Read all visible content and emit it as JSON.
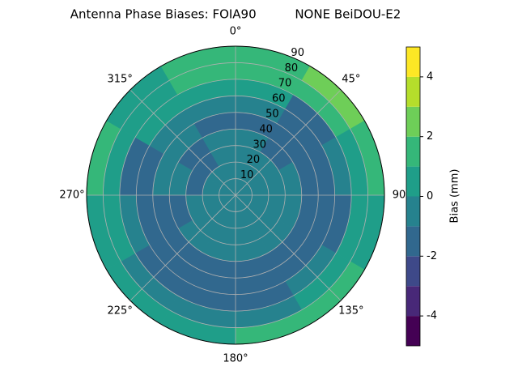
{
  "chart_data": {
    "type": "polar-contour",
    "title": "Antenna Phase Biases: FOIA90          NONE BeiDOU-E2",
    "r_edges": [
      0,
      10,
      20,
      30,
      40,
      50,
      60,
      70,
      80,
      90
    ],
    "theta_edges": [
      0,
      30,
      60,
      90,
      120,
      150,
      180,
      210,
      240,
      270,
      300,
      330,
      360
    ],
    "z": [
      [
        -0.5,
        -0.5,
        -0.5,
        -0.5,
        -0.5,
        -0.5,
        -0.5,
        -0.5,
        -0.5,
        -0.5,
        -0.5,
        -0.5
      ],
      [
        -0.5,
        -0.5,
        -0.5,
        -0.5,
        -0.5,
        -0.5,
        -0.5,
        -0.5,
        -0.5,
        -0.5,
        -0.5,
        -0.5
      ],
      [
        -0.5,
        -0.5,
        -0.5,
        -0.5,
        -0.5,
        -0.5,
        -0.5,
        -0.5,
        -0.5,
        -1.5,
        -1.5,
        -0.5
      ],
      [
        -0.5,
        -1.5,
        -0.5,
        -0.5,
        -0.5,
        -0.5,
        -0.5,
        -0.5,
        -1.5,
        -0.5,
        -1.5,
        -0.5
      ],
      [
        -1.5,
        -1.5,
        -1.5,
        -1.5,
        -1.5,
        -1.5,
        -1.5,
        -1.5,
        -1.5,
        -0.5,
        -0.5,
        -1.5
      ],
      [
        -0.5,
        -1.5,
        -1.5,
        -1.5,
        -1.5,
        -1.5,
        -1.5,
        -1.5,
        -1.5,
        -1.5,
        -0.5,
        -0.5
      ],
      [
        0.5,
        -1.5,
        -0.5,
        -1.5,
        -0.5,
        -1.5,
        -1.5,
        -1.5,
        -0.5,
        -1.5,
        0.5,
        0.5
      ],
      [
        1.5,
        1.5,
        0.5,
        0.5,
        0.5,
        -0.5,
        -0.5,
        -0.5,
        0.5,
        0.5,
        0.5,
        1.5
      ],
      [
        1.5,
        2.5,
        1.5,
        0.5,
        1.5,
        1.5,
        0.5,
        0.5,
        0.5,
        1.5,
        0.5,
        1.5
      ]
    ],
    "rlim": [
      0,
      90
    ],
    "rticks": [
      10,
      20,
      30,
      40,
      50,
      60,
      70,
      80,
      90
    ],
    "thetaticks": [
      {
        "value": 0,
        "label": "0°"
      },
      {
        "value": 45,
        "label": "45°"
      },
      {
        "value": 90,
        "label": "90"
      },
      {
        "value": 135,
        "label": "135°"
      },
      {
        "value": 180,
        "label": "180°"
      },
      {
        "value": 225,
        "label": "225°"
      },
      {
        "value": 270,
        "label": "270°"
      },
      {
        "value": 315,
        "label": "315°"
      }
    ],
    "grid": true,
    "colorbar": {
      "label": "Bias (mm)",
      "levels": [
        -5,
        -4,
        -3,
        -2,
        -1,
        0,
        1,
        2,
        3,
        4,
        5
      ],
      "colors": [
        "#440154",
        "#482878",
        "#3e4989",
        "#31688e",
        "#26828e",
        "#1f9e89",
        "#35b779",
        "#6ece58",
        "#b5de2b",
        "#fde725"
      ],
      "ticks": [
        -4,
        -2,
        0,
        2,
        4
      ]
    }
  }
}
